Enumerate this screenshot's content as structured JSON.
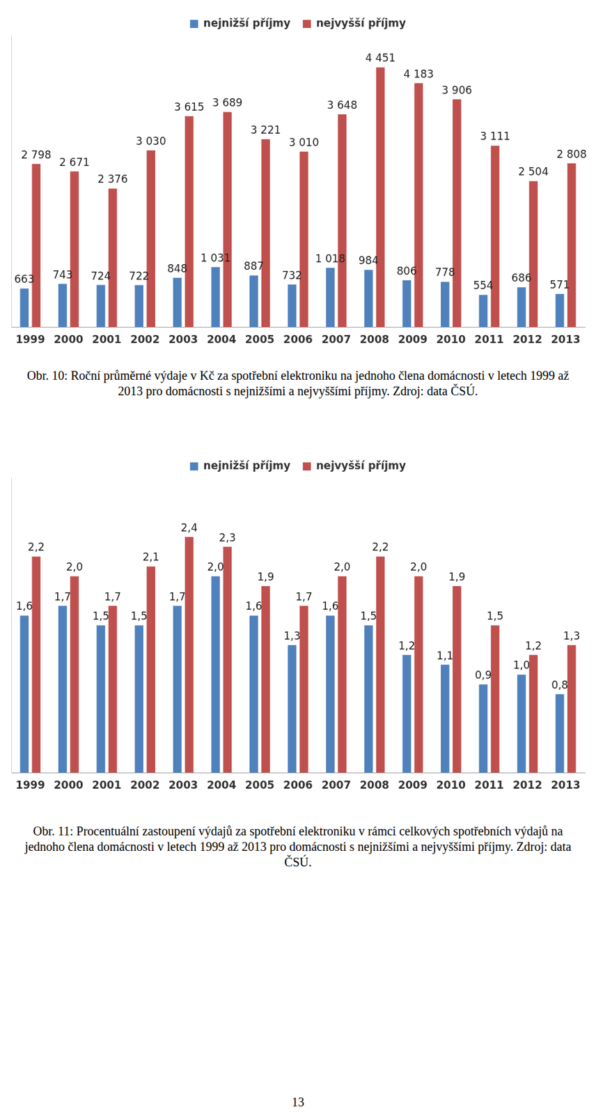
{
  "chart_data": [
    {
      "type": "bar",
      "caption": "Obr. 10: Roční průměrné výdaje v Kč za spotřební elektroniku na jednoho člena domácnosti v letech 1999 až 2013 pro domácnosti s nejnižšími a nejvyššími příjmy. Zdroj: data ČSÚ.",
      "categories": [
        "1999",
        "2000",
        "2001",
        "2002",
        "2003",
        "2004",
        "2005",
        "2006",
        "2007",
        "2008",
        "2009",
        "2010",
        "2011",
        "2012",
        "2013"
      ],
      "series": [
        {
          "name": "nejnižší příjmy",
          "color": "#4f81bd",
          "values": [
            663,
            743,
            724,
            722,
            848,
            1031,
            887,
            732,
            1018,
            984,
            806,
            778,
            554,
            686,
            571
          ],
          "value_labels": [
            "663",
            "743",
            "724",
            "722",
            "848",
            "1 031",
            "887",
            "732",
            "1 018",
            "984",
            "806",
            "778",
            "554",
            "686",
            "571"
          ]
        },
        {
          "name": "nejvyšší příjmy",
          "color": "#c0504d",
          "values": [
            2798,
            2671,
            2376,
            3030,
            3615,
            3689,
            3221,
            3010,
            3648,
            4451,
            4183,
            3906,
            3111,
            2504,
            2808
          ],
          "value_labels": [
            "2 798",
            "2 671",
            "2 376",
            "3 030",
            "3 615",
            "3 689",
            "3 221",
            "3 010",
            "3 648",
            "4 451",
            "4 183",
            "3 906",
            "3 111",
            "2 504",
            "2 808"
          ]
        }
      ],
      "ylim": [
        0,
        5000
      ],
      "grid": false,
      "legend": "top",
      "data_labels": true,
      "tick_labels": "x"
    },
    {
      "type": "bar",
      "caption": "Obr. 11: Procentuální zastoupení výdajů za spotřební elektroniku v rámci celkových spotřebních výdajů na jednoho člena domácnosti v letech 1999 až 2013 pro domácnosti s nejnižšími a nejvyššími příjmy. Zdroj: data ČSÚ.",
      "categories": [
        "1999",
        "2000",
        "2001",
        "2002",
        "2003",
        "2004",
        "2005",
        "2006",
        "2007",
        "2008",
        "2009",
        "2010",
        "2011",
        "2012",
        "2013"
      ],
      "series": [
        {
          "name": "nejnižší příjmy",
          "color": "#4f81bd",
          "values": [
            1.6,
            1.7,
            1.5,
            1.5,
            1.7,
            2.0,
            1.6,
            1.3,
            1.6,
            1.5,
            1.2,
            1.1,
            0.9,
            1.0,
            0.8
          ],
          "value_labels": [
            "1,6",
            "1,7",
            "1,5",
            "1,5",
            "1,7",
            "2,0",
            "1,6",
            "1,3",
            "1,6",
            "1,5",
            "1,2",
            "1,1",
            "0,9",
            "1,0",
            "0,8"
          ]
        },
        {
          "name": "nejvyšší příjmy",
          "color": "#c0504d",
          "values": [
            2.2,
            2.0,
            1.7,
            2.1,
            2.4,
            2.3,
            1.9,
            1.7,
            2.0,
            2.2,
            2.0,
            1.9,
            1.5,
            1.2,
            1.3
          ],
          "value_labels": [
            "2,2",
            "2,0",
            "1,7",
            "2,1",
            "2,4",
            "2,3",
            "1,9",
            "1,7",
            "2,0",
            "2,2",
            "2,0",
            "1,9",
            "1,5",
            "1,2",
            "1,3"
          ]
        }
      ],
      "ylim": [
        0,
        3
      ],
      "grid": false,
      "legend": "top",
      "data_labels": true,
      "tick_labels": "x"
    }
  ],
  "page_number": 13
}
